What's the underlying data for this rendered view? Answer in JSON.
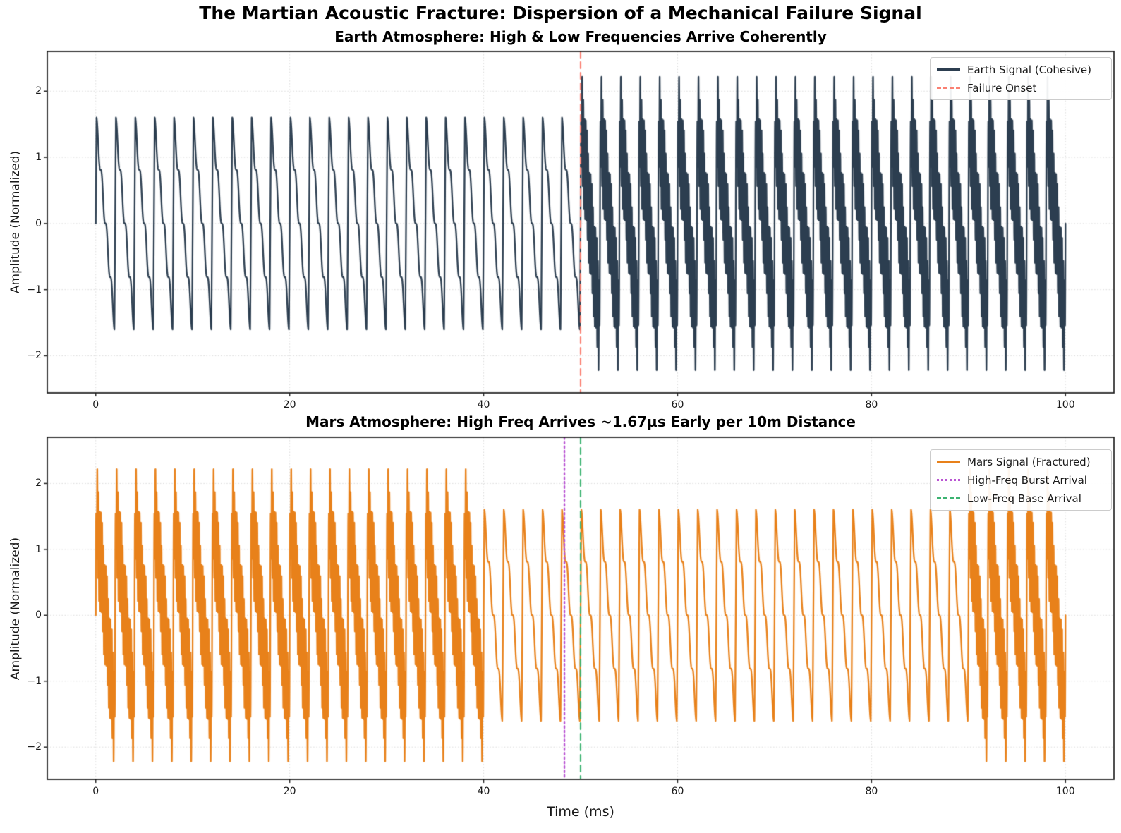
{
  "figure_title": "The Martian Acoustic Fracture: Dispersion of a Mechanical Failure Signal",
  "xlabel": "Time (ms)",
  "chart_data": [
    {
      "type": "line",
      "title": "Earth Atmosphere: High & Low Frequencies Arrive Coherently",
      "ylabel": "Amplitude (Normalized)",
      "xlim": [
        -5,
        105
      ],
      "ylim": [
        -2.56,
        2.6
      ],
      "xticks": [
        0,
        20,
        40,
        60,
        80,
        100
      ],
      "xtick_labels": [
        "0",
        "20",
        "40",
        "60",
        "80",
        "100"
      ],
      "yticks": [
        2,
        1,
        0,
        -1,
        -2
      ],
      "ytick_labels": [
        "2",
        "1",
        "0",
        "−1",
        "−2"
      ],
      "grid": true,
      "series": [
        {
          "name": "Earth Signal (Cohesive)",
          "color": "#2c3e50",
          "style": "solid",
          "waveform": {
            "t_start_ms": 0,
            "t_end_ms": 100,
            "base_freq_khz": 0.5,
            "base_amp": 1.5,
            "rise_ms": 0.15,
            "ripple_freq_khz": 2.0,
            "ripple_amp": 0.13,
            "hf_freq_khz": 8.0,
            "hf_amp": 0.75,
            "hf_intervals_ms": [
              [
                50,
                100
              ]
            ],
            "amplitude_pre_onset": 1.6,
            "amplitude_post_onset": 2.35
          }
        }
      ],
      "vlines": [
        {
          "x": 50,
          "label": "Failure Onset",
          "color": "#fa8072",
          "style": "dashed"
        }
      ],
      "legend": {
        "position": "upper right",
        "items": [
          {
            "label": "Earth Signal (Cohesive)",
            "color": "#2c3e50",
            "style": "solid"
          },
          {
            "label": "Failure Onset",
            "color": "#fa8072",
            "style": "dashed"
          }
        ]
      }
    },
    {
      "type": "line",
      "title": "Mars Atmosphere: High Freq Arrives ~1.67µs Early per 10m Distance",
      "ylabel": "Amplitude (Normalized)",
      "xlim": [
        -5,
        105
      ],
      "ylim": [
        -2.49,
        2.7
      ],
      "xticks": [
        0,
        20,
        40,
        60,
        80,
        100
      ],
      "xtick_labels": [
        "0",
        "20",
        "40",
        "60",
        "80",
        "100"
      ],
      "yticks": [
        2,
        1,
        0,
        -1,
        -2
      ],
      "ytick_labels": [
        "2",
        "1",
        "0",
        "−1",
        "−2"
      ],
      "grid": true,
      "series": [
        {
          "name": "Mars Signal (Fractured)",
          "color": "#e8811a",
          "style": "solid",
          "waveform": {
            "t_start_ms": 0,
            "t_end_ms": 100,
            "base_freq_khz": 0.5,
            "base_amp": 1.5,
            "rise_ms": 0.15,
            "ripple_freq_khz": 2.0,
            "ripple_amp": 0.13,
            "hf_freq_khz": 8.0,
            "hf_amp": 0.75,
            "hf_intervals_ms": [
              [
                0,
                40
              ],
              [
                90,
                100
              ]
            ],
            "amplitude_low_freq_only": 1.6,
            "amplitude_with_burst": 2.35
          }
        }
      ],
      "vlines": [
        {
          "x": 48.33,
          "label": "High-Freq Burst Arrival",
          "color": "#ba55d3",
          "style": "dotted"
        },
        {
          "x": 50,
          "label": "Low-Freq Base Arrival",
          "color": "#3cb371",
          "style": "dashed"
        }
      ],
      "legend": {
        "position": "upper right",
        "items": [
          {
            "label": "Mars Signal (Fractured)",
            "color": "#e8811a",
            "style": "solid"
          },
          {
            "label": "High-Freq Burst Arrival",
            "color": "#ba55d3",
            "style": "dotted"
          },
          {
            "label": "Low-Freq Base Arrival",
            "color": "#3cb371",
            "style": "dashed"
          }
        ]
      }
    }
  ]
}
